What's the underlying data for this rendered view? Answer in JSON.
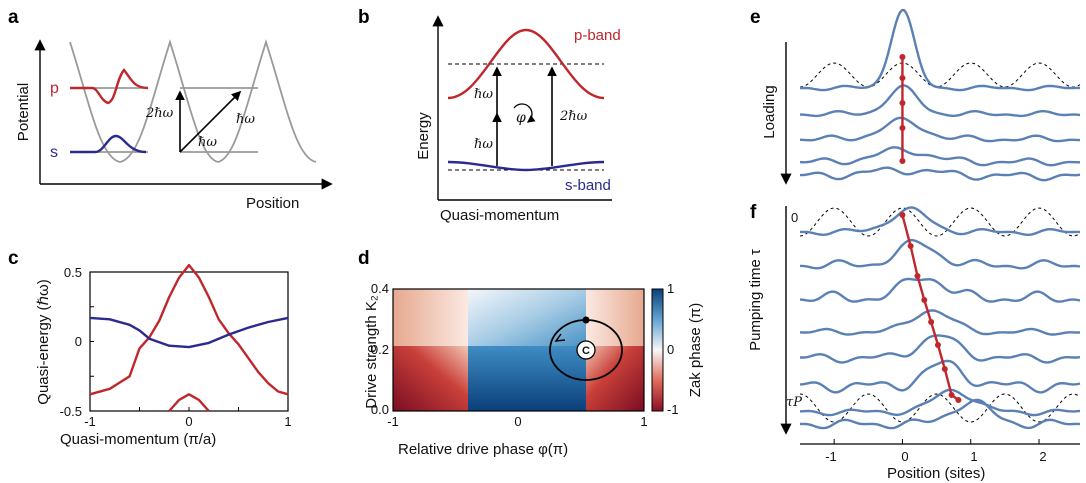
{
  "panels": {
    "a": {
      "letter": "a",
      "ylabel": "Potential",
      "xlabel": "Position",
      "p_label": "p",
      "s_label": "s",
      "two_hw": "2ℏω",
      "hw_1": "ℏω",
      "hw_2": "ℏω"
    },
    "b": {
      "letter": "b",
      "p_band": "p-band",
      "s_band": "s-band",
      "ylabel": "Energy",
      "xlabel": "Quasi-momentum",
      "hw_top": "ℏω",
      "hw_bottom": "ℏω",
      "phi": "φ",
      "two_hw": "2ℏω"
    },
    "c": {
      "letter": "c",
      "xlabel": "Quasi-momentum (π/a)",
      "ylabel": "Quasi-energy (ℏω)",
      "x_ticks": [
        "-1",
        "0",
        "1"
      ],
      "y_ticks": [
        "0.5",
        "0",
        "-0.5"
      ]
    },
    "d": {
      "letter": "d",
      "xlabel": "Relative drive phase φ(π)",
      "ylabel": "Drive strength K₂",
      "x_ticks": [
        "-1",
        "0",
        "1"
      ],
      "y_ticks": [
        "0.4",
        "0.2",
        "0.0"
      ],
      "colorbar_label": "Zak phase (π)",
      "colorbar_ticks": [
        "1",
        "0",
        "-1"
      ],
      "marker": "C"
    },
    "e": {
      "letter": "e",
      "ylabel": "Loading"
    },
    "f": {
      "letter": "f",
      "ylabel": "Pumping time τ",
      "t0": "0",
      "tP": "τP",
      "xlabel": "Position (sites)",
      "x_ticks": [
        "-1",
        "0",
        "1",
        "2"
      ]
    }
  },
  "colors": {
    "red": "#c0272d",
    "blue": "#2a2a8f",
    "steel": "#5b80b5",
    "gray": "#9a9a9a",
    "colormap_pos": "#2166ac",
    "colormap_neg": "#b2182b"
  },
  "chart_data": [
    {
      "type": "line",
      "panel": "c",
      "xlabel": "Quasi-momentum (π/a)",
      "ylabel": "Quasi-energy (ℏω)",
      "xlim": [
        -1,
        1
      ],
      "ylim": [
        -0.5,
        0.5
      ],
      "series": [
        {
          "color": "#c0272d",
          "x": [
            -1,
            -0.8,
            -0.6,
            -0.5,
            -0.4,
            -0.3,
            -0.2,
            -0.1,
            0,
            0.1,
            0.2,
            0.3,
            0.4,
            0.5,
            0.6,
            0.7,
            0.8,
            0.9,
            1
          ],
          "y": [
            -0.38,
            -0.34,
            -0.25,
            -0.05,
            0.03,
            0.15,
            0.32,
            0.46,
            0.55,
            0.46,
            0.32,
            0.16,
            0.06,
            -0.02,
            -0.12,
            -0.22,
            -0.3,
            -0.36,
            -0.38
          ]
        },
        {
          "color": "#2a2a8f",
          "x": [
            -1,
            -0.8,
            -0.6,
            -0.5,
            -0.4,
            -0.2,
            0,
            0.2,
            0.4,
            0.6,
            0.8,
            1
          ],
          "y": [
            0.17,
            0.16,
            0.12,
            0.08,
            0.02,
            -0.03,
            -0.04,
            -0.01,
            0.05,
            0.1,
            0.14,
            0.17
          ]
        },
        {
          "color": "#c0272d",
          "x": [
            -0.2,
            -0.1,
            0,
            0.1,
            0.2
          ],
          "y": [
            -0.5,
            -0.42,
            -0.38,
            -0.42,
            -0.5
          ]
        }
      ]
    },
    {
      "type": "heatmap",
      "panel": "d",
      "xlabel": "Relative drive phase φ(π)",
      "ylabel": "Drive strength K₂",
      "xlim": [
        -1,
        1
      ],
      "ylim": [
        0,
        0.4
      ],
      "colorbar": {
        "label": "Zak phase (π)",
        "range": [
          -1,
          1
        ]
      },
      "discontinuities_phi": [
        -0.5,
        0.5
      ],
      "singular_points": [
        [
          -0.5,
          0.22
        ],
        [
          0.5,
          0.22
        ]
      ],
      "loop": {
        "center": [
          0.5,
          0.22
        ],
        "radius_phi": 0.3,
        "radius_K": 0.09
      }
    },
    {
      "type": "line",
      "panel": "f",
      "xlabel": "Position (sites)",
      "xlim": [
        -1.5,
        2.6
      ],
      "center_of_mass": [
        0,
        0.12,
        0.22,
        0.32,
        0.42,
        0.52,
        0.62,
        0.72,
        0.82,
        1.0
      ],
      "n_traces": 8
    }
  ]
}
